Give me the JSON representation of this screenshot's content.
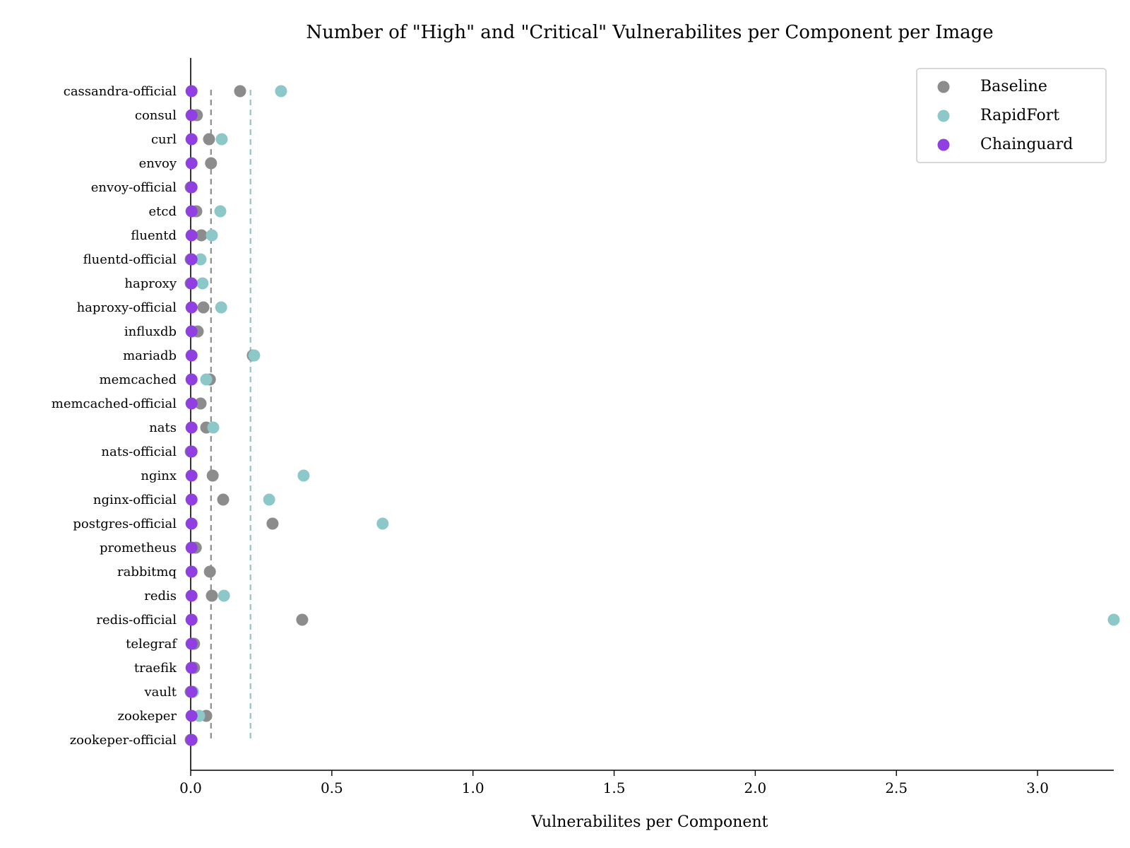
{
  "chart_data": {
    "type": "scatter",
    "title": "Number of \"High\" and \"Critical\" Vulnerabilites per Component per Image",
    "xlabel": "Vulnerabilites per Component",
    "ylabel": "",
    "xlim": [
      0,
      3.27
    ],
    "x_ticks": [
      "0.0",
      "0.5",
      "1.0",
      "1.5",
      "2.0",
      "2.5",
      "3.0"
    ],
    "x_tick_values": [
      0,
      0.5,
      1.0,
      1.5,
      2.0,
      2.5,
      3.0
    ],
    "grid": false,
    "legend_position": "top-right",
    "categories": [
      "cassandra-official",
      "consul",
      "curl",
      "envoy",
      "envoy-official",
      "etcd",
      "fluentd",
      "fluentd-official",
      "haproxy",
      "haproxy-official",
      "influxdb",
      "mariadb",
      "memcached",
      "memcached-official",
      "nats",
      "nats-official",
      "nginx",
      "nginx-official",
      "postgres-official",
      "prometheus",
      "rabbitmq",
      "redis",
      "redis-official",
      "telegraf",
      "traefik",
      "vault",
      "zookeper",
      "zookeper-official"
    ],
    "series": [
      {
        "name": "Baseline",
        "color": "#8c8c8c",
        "mean_line": 0.072,
        "values": [
          0.175,
          0.022,
          0.065,
          0.072,
          0.0,
          0.02,
          0.038,
          0.0,
          0.0,
          0.045,
          0.025,
          0.22,
          0.068,
          0.035,
          0.055,
          0.0,
          0.078,
          0.115,
          0.29,
          0.018,
          0.068,
          0.075,
          0.395,
          0.012,
          0.012,
          0.0,
          0.055,
          0.0
        ]
      },
      {
        "name": "RapidFort",
        "color": "#8cc8c8",
        "mean_line": 0.212,
        "values": [
          0.32,
          null,
          0.11,
          null,
          null,
          0.105,
          0.075,
          0.035,
          0.042,
          0.108,
          null,
          0.225,
          0.055,
          null,
          0.08,
          null,
          0.4,
          0.278,
          0.68,
          null,
          null,
          0.118,
          3.27,
          null,
          null,
          0.008,
          0.03,
          null
        ]
      },
      {
        "name": "Chainguard",
        "color": "#9040e0",
        "values": [
          0.003,
          0.003,
          0.003,
          0.003,
          0.003,
          0.003,
          0.003,
          0.003,
          0.003,
          0.003,
          0.003,
          0.003,
          0.003,
          0.003,
          0.003,
          0.003,
          0.003,
          0.003,
          0.003,
          0.003,
          0.003,
          0.003,
          0.003,
          0.003,
          0.003,
          0.003,
          0.003,
          0.003
        ]
      }
    ]
  }
}
